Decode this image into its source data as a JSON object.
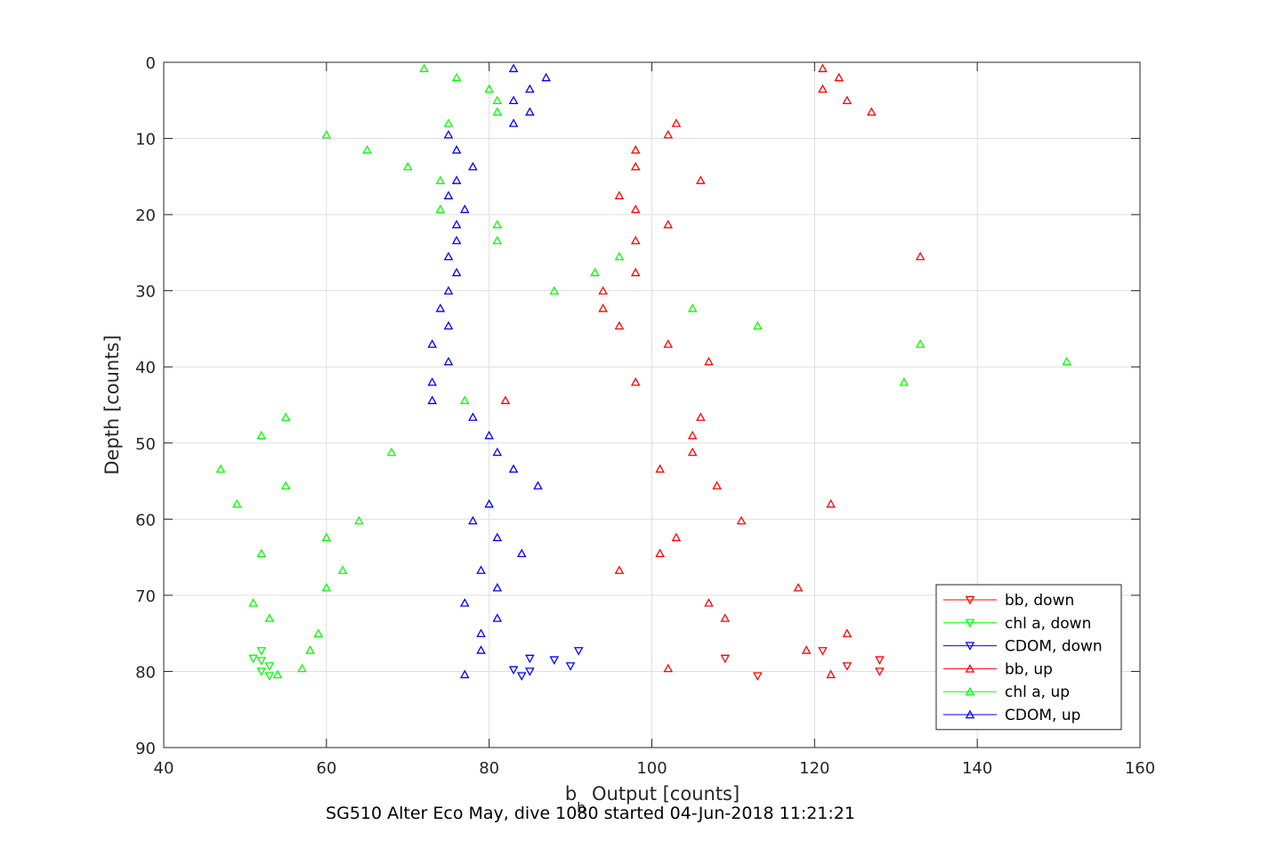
{
  "chart_data": {
    "type": "scatter",
    "xlabel_main": "b",
    "xlabel_sub": "b",
    "xlabel_rest": " Output [counts]",
    "ylabel": "Depth [counts]",
    "caption": "SG510 Alter Eco May, dive 1080 started 04-Jun-2018 11:21:21",
    "xlim": [
      40,
      160
    ],
    "ylim": [
      0,
      90
    ],
    "y_reversed": true,
    "grid": true,
    "legend_position": "bottom-right",
    "xticks": [
      "40",
      "60",
      "80",
      "100",
      "120",
      "140",
      "160"
    ],
    "yticks": [
      "0",
      "10",
      "20",
      "30",
      "40",
      "50",
      "60",
      "70",
      "80",
      "90"
    ],
    "series": [
      {
        "name": "bb, down",
        "color": "#ff0000",
        "marker": "triangle-down",
        "points": [
          [
            121,
            77.3
          ],
          [
            124,
            79.3
          ],
          [
            128,
            78.5
          ],
          [
            128,
            80.0
          ],
          [
            109,
            78.3
          ],
          [
            113,
            80.6
          ]
        ]
      },
      {
        "name": "chl a, down",
        "color": "#00ff00",
        "marker": "triangle-down",
        "points": [
          [
            52,
            77.3
          ],
          [
            51,
            78.3
          ],
          [
            52,
            78.6
          ],
          [
            53,
            79.3
          ],
          [
            52,
            80.0
          ],
          [
            53,
            80.6
          ]
        ]
      },
      {
        "name": "CDOM, down",
        "color": "#0000ff",
        "marker": "triangle-down",
        "points": [
          [
            91,
            77.3
          ],
          [
            88,
            78.5
          ],
          [
            85,
            78.3
          ],
          [
            90,
            79.3
          ],
          [
            83,
            79.8
          ],
          [
            84,
            80.6
          ],
          [
            85,
            80.0
          ]
        ]
      },
      {
        "name": "bb, up",
        "color": "#ff0000",
        "marker": "triangle-up",
        "points": [
          [
            121,
            0.8
          ],
          [
            123,
            2.0
          ],
          [
            121,
            3.5
          ],
          [
            124,
            5.0
          ],
          [
            127,
            6.5
          ],
          [
            103,
            8.0
          ],
          [
            102,
            9.5
          ],
          [
            98,
            11.5
          ],
          [
            98,
            13.7
          ],
          [
            106,
            15.5
          ],
          [
            96,
            17.5
          ],
          [
            98,
            19.3
          ],
          [
            102,
            21.3
          ],
          [
            98,
            23.4
          ],
          [
            133,
            25.5
          ],
          [
            98,
            27.6
          ],
          [
            94,
            30.0
          ],
          [
            94,
            32.3
          ],
          [
            96,
            34.6
          ],
          [
            102,
            37.0
          ],
          [
            107,
            39.3
          ],
          [
            98,
            42.0
          ],
          [
            82,
            44.4
          ],
          [
            106,
            46.6
          ],
          [
            105,
            49.0
          ],
          [
            105,
            51.2
          ],
          [
            101,
            53.4
          ],
          [
            108,
            55.6
          ],
          [
            122,
            58.0
          ],
          [
            111,
            60.2
          ],
          [
            103,
            62.4
          ],
          [
            101,
            64.5
          ],
          [
            96,
            66.7
          ],
          [
            118,
            69.0
          ],
          [
            107,
            71.0
          ],
          [
            109,
            73.0
          ],
          [
            124,
            75.0
          ],
          [
            119,
            77.2
          ],
          [
            102,
            79.6
          ],
          [
            122,
            80.4
          ]
        ]
      },
      {
        "name": "chl a, up",
        "color": "#00ff00",
        "marker": "triangle-up",
        "points": [
          [
            72,
            0.8
          ],
          [
            76,
            2.0
          ],
          [
            80,
            3.5
          ],
          [
            81,
            5.0
          ],
          [
            81,
            6.5
          ],
          [
            75,
            8.0
          ],
          [
            60,
            9.5
          ],
          [
            65,
            11.5
          ],
          [
            70,
            13.7
          ],
          [
            74,
            15.5
          ],
          [
            74,
            19.3
          ],
          [
            81,
            21.3
          ],
          [
            81,
            23.4
          ],
          [
            96,
            25.5
          ],
          [
            93,
            27.6
          ],
          [
            88,
            30.0
          ],
          [
            105,
            32.3
          ],
          [
            113,
            34.6
          ],
          [
            133,
            37.0
          ],
          [
            151,
            39.3
          ],
          [
            131,
            42.0
          ],
          [
            77,
            44.4
          ],
          [
            55,
            46.6
          ],
          [
            52,
            49.0
          ],
          [
            68,
            51.2
          ],
          [
            47,
            53.4
          ],
          [
            55,
            55.6
          ],
          [
            49,
            58.0
          ],
          [
            64,
            60.2
          ],
          [
            60,
            62.4
          ],
          [
            52,
            64.5
          ],
          [
            62,
            66.7
          ],
          [
            60,
            69.0
          ],
          [
            51,
            71.0
          ],
          [
            53,
            73.0
          ],
          [
            59,
            75.0
          ],
          [
            58,
            77.2
          ],
          [
            57,
            79.6
          ],
          [
            54,
            80.4
          ]
        ]
      },
      {
        "name": "CDOM, up",
        "color": "#0000ff",
        "marker": "triangle-up",
        "points": [
          [
            83,
            0.8
          ],
          [
            87,
            2.0
          ],
          [
            85,
            3.5
          ],
          [
            83,
            5.0
          ],
          [
            85,
            6.5
          ],
          [
            83,
            8.0
          ],
          [
            75,
            9.5
          ],
          [
            76,
            11.5
          ],
          [
            78,
            13.7
          ],
          [
            76,
            15.5
          ],
          [
            75,
            17.5
          ],
          [
            77,
            19.3
          ],
          [
            76,
            21.3
          ],
          [
            76,
            23.4
          ],
          [
            75,
            25.5
          ],
          [
            76,
            27.6
          ],
          [
            75,
            30.0
          ],
          [
            74,
            32.3
          ],
          [
            75,
            34.6
          ],
          [
            73,
            37.0
          ],
          [
            75,
            39.3
          ],
          [
            73,
            42.0
          ],
          [
            73,
            44.4
          ],
          [
            78,
            46.6
          ],
          [
            80,
            49.0
          ],
          [
            81,
            51.2
          ],
          [
            83,
            53.4
          ],
          [
            86,
            55.6
          ],
          [
            80,
            58.0
          ],
          [
            78,
            60.2
          ],
          [
            81,
            62.4
          ],
          [
            84,
            64.5
          ],
          [
            79,
            66.7
          ],
          [
            81,
            69.0
          ],
          [
            77,
            71.0
          ],
          [
            81,
            73.0
          ],
          [
            79,
            75.0
          ],
          [
            79,
            77.2
          ],
          [
            77,
            80.4
          ]
        ]
      }
    ]
  }
}
